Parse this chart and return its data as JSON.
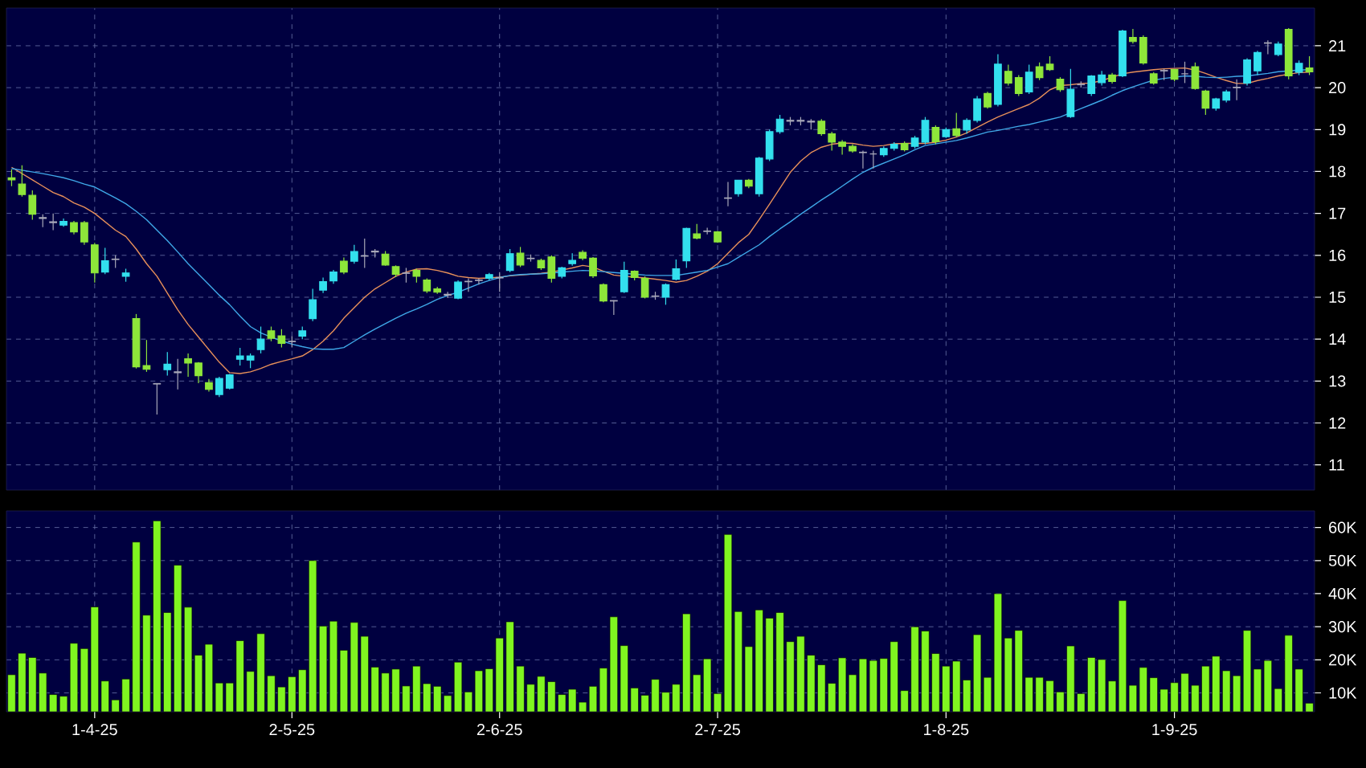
{
  "chart_data": [
    {
      "type": "candlestick",
      "categories": [
        null,
        null,
        null,
        null,
        null,
        null,
        null,
        null,
        null,
        null,
        null,
        null,
        null,
        null,
        null,
        null,
        null,
        null,
        null,
        null,
        null,
        null,
        null,
        null,
        null,
        null,
        null,
        null,
        null,
        null,
        null,
        null,
        null,
        null,
        null,
        null,
        null,
        null,
        null,
        null,
        null,
        null,
        null,
        null,
        null,
        null,
        null,
        null,
        null,
        null,
        null,
        null,
        null,
        null,
        null,
        null,
        null,
        null,
        null,
        null,
        null,
        null,
        null,
        null,
        null,
        null,
        null,
        null,
        null,
        null,
        null,
        null,
        null,
        null,
        null,
        null,
        null,
        null,
        null,
        null,
        null,
        null,
        null,
        null,
        null,
        null,
        null,
        null,
        null,
        null,
        null,
        null,
        null,
        null,
        null,
        null,
        null,
        null,
        null,
        null,
        null,
        null,
        null,
        null,
        null,
        null,
        null,
        null,
        null,
        null,
        null,
        null,
        null,
        null,
        null,
        null,
        null,
        null,
        null,
        null,
        null,
        null,
        null,
        null,
        null,
        null
      ],
      "ohlc": [
        [
          17.85,
          18.05,
          17.65,
          17.8
        ],
        [
          17.7,
          18.15,
          17.4,
          17.45
        ],
        [
          17.43,
          17.55,
          16.85,
          16.98
        ],
        [
          16.9,
          16.98,
          16.67,
          16.88
        ],
        [
          16.8,
          17.0,
          16.6,
          16.78
        ],
        [
          16.72,
          16.88,
          16.68,
          16.81
        ],
        [
          16.78,
          16.82,
          16.5,
          16.56
        ],
        [
          16.78,
          16.82,
          16.25,
          16.32
        ],
        [
          16.25,
          16.3,
          15.35,
          15.58
        ],
        [
          15.6,
          16.18,
          15.55,
          15.87
        ],
        [
          15.9,
          16.0,
          15.7,
          15.91
        ],
        [
          15.5,
          15.68,
          15.37,
          15.58
        ],
        [
          14.49,
          14.6,
          13.3,
          13.34
        ],
        [
          13.37,
          13.98,
          13.22,
          13.28
        ],
        [
          12.94,
          12.95,
          12.2,
          12.93
        ],
        [
          13.27,
          13.69,
          13.13,
          13.4
        ],
        [
          13.22,
          13.53,
          12.8,
          13.2
        ],
        [
          13.53,
          13.66,
          13.1,
          13.43
        ],
        [
          13.43,
          13.45,
          12.95,
          13.13
        ],
        [
          12.96,
          13.05,
          12.75,
          12.8
        ],
        [
          12.68,
          13.1,
          12.62,
          13.06
        ],
        [
          12.83,
          13.17,
          12.8,
          13.15
        ],
        [
          13.52,
          13.79,
          13.37,
          13.6
        ],
        [
          13.5,
          13.66,
          13.31,
          13.6
        ],
        [
          13.75,
          14.3,
          13.66,
          14.0
        ],
        [
          14.2,
          14.3,
          13.95,
          14.02
        ],
        [
          14.08,
          14.24,
          13.8,
          13.9
        ],
        [
          13.95,
          14.07,
          13.8,
          13.94
        ],
        [
          14.07,
          14.3,
          14.0,
          14.2
        ],
        [
          14.49,
          15.2,
          14.43,
          14.94
        ],
        [
          15.17,
          15.47,
          15.1,
          15.37
        ],
        [
          15.39,
          15.65,
          15.32,
          15.6
        ],
        [
          15.86,
          15.95,
          15.55,
          15.6
        ],
        [
          15.86,
          16.25,
          15.8,
          16.09
        ],
        [
          15.99,
          16.4,
          15.7,
          15.98
        ],
        [
          16.08,
          16.15,
          15.95,
          16.1
        ],
        [
          16.03,
          16.1,
          15.75,
          15.77
        ],
        [
          15.73,
          15.76,
          15.48,
          15.55
        ],
        [
          15.58,
          15.7,
          15.35,
          15.57
        ],
        [
          15.64,
          15.68,
          15.35,
          15.5
        ],
        [
          15.41,
          15.45,
          15.1,
          15.15
        ],
        [
          15.2,
          15.25,
          15.08,
          15.12
        ],
        [
          15.05,
          15.13,
          14.98,
          15.07
        ],
        [
          14.98,
          15.4,
          14.95,
          15.36
        ],
        [
          15.38,
          15.45,
          15.13,
          15.37
        ],
        [
          15.4,
          15.45,
          15.3,
          15.41
        ],
        [
          15.45,
          15.58,
          15.4,
          15.54
        ],
        [
          15.46,
          15.6,
          15.13,
          15.47
        ],
        [
          15.64,
          16.15,
          15.6,
          16.04
        ],
        [
          16.05,
          16.2,
          15.72,
          15.77
        ],
        [
          15.93,
          16.02,
          15.85,
          15.92
        ],
        [
          15.88,
          15.92,
          15.65,
          15.7
        ],
        [
          15.96,
          16.0,
          15.35,
          15.45
        ],
        [
          15.5,
          15.73,
          15.45,
          15.7
        ],
        [
          15.8,
          16.05,
          15.75,
          15.88
        ],
        [
          16.07,
          16.12,
          15.88,
          15.93
        ],
        [
          15.93,
          15.96,
          15.46,
          15.51
        ],
        [
          15.3,
          15.33,
          14.88,
          14.91
        ],
        [
          14.92,
          14.93,
          14.58,
          14.91
        ],
        [
          15.13,
          15.85,
          15.1,
          15.64
        ],
        [
          15.62,
          15.64,
          15.4,
          15.47
        ],
        [
          15.45,
          15.5,
          14.97,
          15.0
        ],
        [
          15.03,
          15.13,
          14.94,
          15.02
        ],
        [
          15.0,
          15.33,
          14.82,
          15.3
        ],
        [
          15.43,
          15.9,
          15.4,
          15.68
        ],
        [
          15.87,
          16.66,
          15.7,
          16.64
        ],
        [
          16.51,
          16.75,
          16.38,
          16.41
        ],
        [
          16.57,
          16.66,
          16.5,
          16.58
        ],
        [
          16.56,
          16.58,
          16.3,
          16.32
        ],
        [
          17.37,
          17.75,
          17.17,
          17.36
        ],
        [
          17.47,
          17.8,
          17.4,
          17.79
        ],
        [
          17.79,
          17.82,
          17.6,
          17.65
        ],
        [
          17.47,
          18.35,
          17.4,
          18.32
        ],
        [
          18.3,
          19.0,
          18.25,
          18.95
        ],
        [
          18.95,
          19.35,
          18.9,
          19.25
        ],
        [
          19.22,
          19.3,
          19.1,
          19.2
        ],
        [
          19.2,
          19.3,
          19.1,
          19.22
        ],
        [
          19.2,
          19.25,
          19.0,
          19.18
        ],
        [
          19.2,
          19.25,
          18.85,
          18.9
        ],
        [
          18.9,
          18.95,
          18.5,
          18.7
        ],
        [
          18.7,
          18.75,
          18.4,
          18.6
        ],
        [
          18.6,
          18.65,
          18.45,
          18.49
        ],
        [
          18.46,
          18.5,
          18.07,
          18.45
        ],
        [
          18.42,
          18.5,
          18.07,
          18.42
        ],
        [
          18.4,
          18.6,
          18.35,
          18.55
        ],
        [
          18.55,
          18.7,
          18.5,
          18.65
        ],
        [
          18.67,
          18.72,
          18.48,
          18.52
        ],
        [
          18.6,
          18.85,
          18.55,
          18.8
        ],
        [
          18.7,
          19.3,
          18.65,
          19.22
        ],
        [
          19.05,
          19.1,
          18.65,
          18.71
        ],
        [
          18.83,
          19.05,
          18.8,
          19.0
        ],
        [
          19.02,
          19.4,
          18.82,
          18.86
        ],
        [
          18.99,
          19.27,
          18.9,
          19.22
        ],
        [
          19.22,
          19.8,
          19.17,
          19.73
        ],
        [
          19.86,
          19.9,
          19.5,
          19.54
        ],
        [
          19.6,
          20.8,
          19.55,
          20.56
        ],
        [
          20.39,
          20.55,
          20.05,
          20.11
        ],
        [
          20.24,
          20.3,
          19.8,
          19.86
        ],
        [
          19.9,
          20.55,
          19.85,
          20.37
        ],
        [
          20.5,
          20.6,
          20.18,
          20.24
        ],
        [
          20.56,
          20.75,
          20.4,
          20.43
        ],
        [
          20.2,
          20.25,
          19.9,
          19.95
        ],
        [
          19.31,
          20.45,
          19.28,
          19.96
        ],
        [
          20.07,
          20.15,
          20.0,
          20.08
        ],
        [
          19.86,
          20.3,
          19.8,
          20.28
        ],
        [
          20.12,
          20.4,
          20.05,
          20.3
        ],
        [
          20.3,
          20.35,
          20.1,
          20.15
        ],
        [
          20.28,
          21.38,
          20.25,
          21.35
        ],
        [
          21.2,
          21.4,
          21.05,
          21.1
        ],
        [
          21.2,
          21.25,
          20.55,
          20.59
        ],
        [
          20.33,
          20.37,
          20.07,
          20.11
        ],
        [
          20.4,
          20.45,
          20.18,
          20.41
        ],
        [
          20.43,
          20.45,
          20.15,
          20.2
        ],
        [
          20.33,
          20.62,
          20.11,
          20.33
        ],
        [
          20.5,
          20.6,
          19.95,
          19.98
        ],
        [
          19.92,
          19.95,
          19.35,
          19.51
        ],
        [
          19.51,
          19.76,
          19.45,
          19.73
        ],
        [
          19.7,
          19.95,
          19.65,
          19.9
        ],
        [
          20.0,
          20.2,
          19.7,
          20.01
        ],
        [
          20.11,
          20.7,
          20.05,
          20.66
        ],
        [
          20.4,
          20.88,
          20.3,
          20.84
        ],
        [
          21.07,
          21.13,
          20.8,
          21.06
        ],
        [
          20.79,
          21.1,
          20.75,
          21.04
        ],
        [
          21.39,
          21.42,
          20.2,
          20.28
        ],
        [
          20.37,
          20.65,
          20.3,
          20.58
        ],
        [
          20.47,
          20.75,
          20.3,
          20.38
        ]
      ],
      "colors": [
        "#8ee63a",
        "#8ee63a",
        "#8ee63a",
        "#a8a8b8",
        "#a8a8b8",
        "#33e0ee",
        "#8ee63a",
        "#8ee63a",
        "#8ee63a",
        "#33e0ee",
        "#a8a8b8",
        "#33e0ee",
        "#8ee63a",
        "#8ee63a",
        "#a8a8b8",
        "#33e0ee",
        "#a8a8b8",
        "#8ee63a",
        "#8ee63a",
        "#8ee63a",
        "#33e0ee",
        "#33e0ee",
        "#33e0ee",
        "#33e0ee",
        "#33e0ee",
        "#8ee63a",
        "#8ee63a",
        "#a8a8b8",
        "#33e0ee",
        "#33e0ee",
        "#33e0ee",
        "#33e0ee",
        "#8ee63a",
        "#33e0ee",
        "#a8a8b8",
        "#a8a8b8",
        "#8ee63a",
        "#8ee63a",
        "#a8a8b8",
        "#8ee63a",
        "#8ee63a",
        "#8ee63a",
        "#a8a8b8",
        "#33e0ee",
        "#a8a8b8",
        "#a8a8b8",
        "#33e0ee",
        "#a8a8b8",
        "#33e0ee",
        "#8ee63a",
        "#a8a8b8",
        "#8ee63a",
        "#8ee63a",
        "#33e0ee",
        "#33e0ee",
        "#8ee63a",
        "#8ee63a",
        "#8ee63a",
        "#a8a8b8",
        "#33e0ee",
        "#8ee63a",
        "#8ee63a",
        "#a8a8b8",
        "#33e0ee",
        "#33e0ee",
        "#33e0ee",
        "#8ee63a",
        "#a8a8b8",
        "#8ee63a",
        "#a8a8b8",
        "#33e0ee",
        "#8ee63a",
        "#33e0ee",
        "#33e0ee",
        "#33e0ee",
        "#a8a8b8",
        "#a8a8b8",
        "#a8a8b8",
        "#8ee63a",
        "#8ee63a",
        "#8ee63a",
        "#8ee63a",
        "#a8a8b8",
        "#a8a8b8",
        "#33e0ee",
        "#33e0ee",
        "#8ee63a",
        "#33e0ee",
        "#33e0ee",
        "#8ee63a",
        "#33e0ee",
        "#8ee63a",
        "#33e0ee",
        "#33e0ee",
        "#8ee63a",
        "#33e0ee",
        "#8ee63a",
        "#8ee63a",
        "#33e0ee",
        "#8ee63a",
        "#8ee63a",
        "#8ee63a",
        "#33e0ee",
        "#a8a8b8",
        "#33e0ee",
        "#33e0ee",
        "#8ee63a",
        "#33e0ee",
        "#8ee63a",
        "#8ee63a",
        "#8ee63a",
        "#a8a8b8",
        "#8ee63a",
        "#a8a8b8",
        "#8ee63a",
        "#8ee63a",
        "#33e0ee",
        "#33e0ee",
        "#a8a8b8",
        "#33e0ee",
        "#33e0ee",
        "#a8a8b8",
        "#33e0ee",
        "#8ee63a",
        "#33e0ee",
        "#8ee63a"
      ],
      "series": [
        {
          "type": "line",
          "color": "#e8905a",
          "values": [
            18.1,
            17.95,
            17.8,
            17.65,
            17.5,
            17.4,
            17.25,
            17.15,
            17.0,
            16.8,
            16.6,
            16.45,
            16.15,
            15.8,
            15.5,
            15.1,
            14.7,
            14.35,
            14.05,
            13.75,
            13.45,
            13.2,
            13.18,
            13.22,
            13.3,
            13.4,
            13.47,
            13.53,
            13.6,
            13.75,
            13.95,
            14.2,
            14.5,
            14.75,
            15.0,
            15.2,
            15.35,
            15.5,
            15.6,
            15.67,
            15.68,
            15.64,
            15.58,
            15.5,
            15.47,
            15.45,
            15.46,
            15.48,
            15.51,
            15.53,
            15.55,
            15.57,
            15.6,
            15.65,
            15.7,
            15.76,
            15.72,
            15.62,
            15.53,
            15.5,
            15.48,
            15.46,
            15.43,
            15.4,
            15.36,
            15.4,
            15.5,
            15.62,
            15.8,
            16.05,
            16.3,
            16.5,
            16.85,
            17.22,
            17.6,
            17.98,
            18.25,
            18.45,
            18.58,
            18.65,
            18.68,
            18.67,
            18.63,
            18.6,
            18.62,
            18.66,
            18.67,
            18.67,
            18.67,
            18.7,
            18.75,
            18.82,
            18.92,
            19.05,
            19.18,
            19.3,
            19.4,
            19.5,
            19.6,
            19.75,
            19.95,
            20.05,
            20.07,
            20.1,
            20.11,
            20.17,
            20.25,
            20.33,
            20.37,
            20.4,
            20.43,
            20.45,
            20.46,
            20.47,
            20.42,
            20.34,
            20.25,
            20.17,
            20.1,
            20.1,
            20.17,
            20.22,
            20.28,
            20.32,
            20.36,
            20.37
          ]
        },
        {
          "type": "line",
          "color": "#3fa8e8",
          "values": [
            18.07,
            18.03,
            17.99,
            17.95,
            17.9,
            17.85,
            17.78,
            17.7,
            17.63,
            17.5,
            17.37,
            17.23,
            17.05,
            16.85,
            16.6,
            16.35,
            16.08,
            15.8,
            15.55,
            15.3,
            15.05,
            14.82,
            14.55,
            14.3,
            14.15,
            14.05,
            13.96,
            13.88,
            13.82,
            13.77,
            13.76,
            13.76,
            13.8,
            13.95,
            14.1,
            14.24,
            14.37,
            14.5,
            14.62,
            14.72,
            14.83,
            14.95,
            15.04,
            15.12,
            15.22,
            15.32,
            15.4,
            15.47,
            15.52,
            15.54,
            15.55,
            15.56,
            15.58,
            15.6,
            15.62,
            15.64,
            15.63,
            15.61,
            15.59,
            15.57,
            15.55,
            15.53,
            15.52,
            15.52,
            15.52,
            15.56,
            15.6,
            15.64,
            15.72,
            15.8,
            15.95,
            16.1,
            16.25,
            16.45,
            16.63,
            16.8,
            16.98,
            17.15,
            17.32,
            17.48,
            17.65,
            17.82,
            17.98,
            18.1,
            18.2,
            18.3,
            18.4,
            18.52,
            18.62,
            18.66,
            18.7,
            18.74,
            18.8,
            18.87,
            18.94,
            18.98,
            19.03,
            19.08,
            19.12,
            19.18,
            19.24,
            19.3,
            19.4,
            19.5,
            19.6,
            19.7,
            19.82,
            19.93,
            20.02,
            20.1,
            20.18,
            20.22,
            20.25,
            20.28,
            20.27,
            20.25,
            20.24,
            20.25,
            20.27,
            20.28,
            20.31,
            20.34,
            20.38,
            20.4,
            20.42,
            20.43
          ]
        }
      ],
      "ylim": [
        10.4,
        21.9
      ],
      "yticks": [
        11,
        12,
        13,
        14,
        15,
        16,
        17,
        18,
        19,
        20,
        21
      ],
      "grid": true
    },
    {
      "type": "bar",
      "categories": [
        null,
        null,
        null,
        null,
        null,
        null,
        null,
        null,
        "1-4-25",
        null,
        null,
        null,
        null,
        null,
        null,
        null,
        null,
        null,
        null,
        null,
        null,
        null,
        null,
        null,
        null,
        null,
        null,
        "2-5-25",
        null,
        null,
        null,
        null,
        null,
        null,
        null,
        null,
        null,
        null,
        null,
        null,
        null,
        null,
        null,
        null,
        null,
        null,
        null,
        "2-6-25",
        null,
        null,
        null,
        null,
        null,
        null,
        null,
        null,
        null,
        null,
        null,
        null,
        null,
        null,
        null,
        null,
        null,
        null,
        null,
        null,
        "2-7-25",
        null,
        null,
        null,
        null,
        null,
        null,
        null,
        null,
        null,
        null,
        null,
        null,
        null,
        null,
        null,
        null,
        null,
        null,
        null,
        null,
        null,
        "1-8-25",
        null,
        null,
        null,
        null,
        null,
        null,
        null,
        null,
        null,
        null,
        null,
        null,
        null,
        null,
        null,
        null,
        null,
        null,
        null,
        null,
        null,
        "1-9-25",
        null,
        null,
        null,
        null,
        null,
        null,
        null,
        null,
        null,
        null,
        null,
        null,
        null
      ],
      "values": [
        15500,
        22000,
        20700,
        16000,
        9500,
        9000,
        25000,
        23400,
        36000,
        13600,
        7900,
        14200,
        55600,
        33500,
        62000,
        34300,
        48600,
        35900,
        21400,
        24700,
        13000,
        13000,
        25800,
        16500,
        27900,
        15200,
        11800,
        14900,
        17000,
        50000,
        30200,
        31700,
        22900,
        31300,
        27100,
        17800,
        16000,
        17200,
        12100,
        18100,
        12800,
        12000,
        9200,
        19300,
        10300,
        16700,
        17300,
        26600,
        31500,
        18100,
        12600,
        15000,
        13400,
        9500,
        11100,
        7200,
        12000,
        17500,
        33000,
        24300,
        11500,
        9300,
        14100,
        10200,
        12600,
        33900,
        15500,
        20300,
        9800,
        57900,
        34600,
        24000,
        35100,
        32600,
        34300,
        25500,
        27100,
        21400,
        18500,
        12900,
        20600,
        15500,
        20300,
        19800,
        20400,
        25500,
        10700,
        30000,
        28700,
        21900,
        18100,
        19600,
        13900,
        27600,
        14700,
        40000,
        26600,
        28900,
        14700,
        14700,
        13700,
        10300,
        24200,
        9800,
        20700,
        20100,
        13600,
        37900,
        12300,
        17700,
        14600,
        11100,
        13100,
        15900,
        12300,
        18100,
        21100,
        16700,
        15200,
        28900,
        17200,
        19800,
        11300,
        27400,
        17200,
        6900
      ],
      "color": "#80f520",
      "ylim": [
        4300,
        65000
      ],
      "yticks": [
        {
          "value": 10000,
          "label": "10K"
        },
        {
          "value": 20000,
          "label": "20K"
        },
        {
          "value": 30000,
          "label": "30K"
        },
        {
          "value": 40000,
          "label": "40K"
        },
        {
          "value": 50000,
          "label": "50K"
        },
        {
          "value": 60000,
          "label": "60K"
        }
      ],
      "grid": true
    }
  ]
}
